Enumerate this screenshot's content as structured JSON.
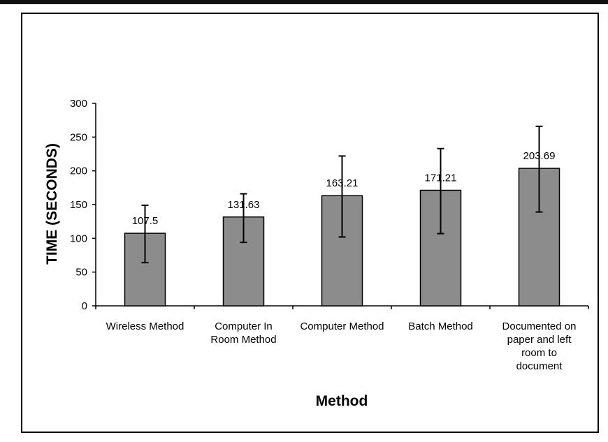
{
  "chart_data": {
    "type": "bar",
    "title": "",
    "xlabel": "Method",
    "ylabel": "TIME (SECONDS)",
    "ylim": [
      0,
      300
    ],
    "yticks": [
      0,
      50,
      100,
      150,
      200,
      250,
      300
    ],
    "grid": false,
    "legend": "none",
    "categories": [
      [
        "Wireless Method"
      ],
      [
        "Computer In",
        "Room Method"
      ],
      [
        "Computer Method"
      ],
      [
        "Batch Method"
      ],
      [
        "Documented on",
        "paper and left",
        "room to",
        "document"
      ]
    ],
    "values": [
      107.5,
      131.63,
      163.21,
      171.21,
      203.69
    ],
    "value_labels": [
      "107.5",
      "131.63",
      "163.21",
      "171.21",
      "203.69"
    ],
    "error_bars": [
      {
        "low": 64,
        "high": 149
      },
      {
        "low": 94,
        "high": 166
      },
      {
        "low": 102,
        "high": 222
      },
      {
        "low": 107,
        "high": 233
      },
      {
        "low": 139,
        "high": 266
      }
    ],
    "bar_color": "#8c8c8c",
    "bar_stroke": "#000000"
  }
}
